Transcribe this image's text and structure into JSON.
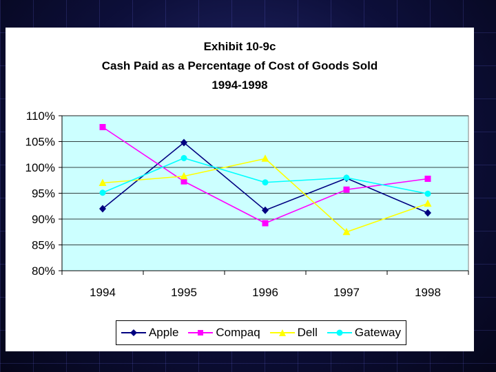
{
  "chart_data": {
    "type": "line",
    "title_lines": [
      "Exhibit 10-9c",
      "Cash Paid as a Percentage of Cost of Goods Sold",
      "1994-1998"
    ],
    "categories": [
      "1994",
      "1995",
      "1996",
      "1997",
      "1998"
    ],
    "y_ticks": [
      "110%",
      "105%",
      "100%",
      "95%",
      "90%",
      "85%",
      "80%"
    ],
    "ylim": [
      80,
      110
    ],
    "xlabel": "",
    "ylabel": "",
    "grid": "horizontal",
    "legend_position": "bottom",
    "plot_background": "#ccffff",
    "series": [
      {
        "name": "Apple",
        "color": "#000080",
        "marker": "diamond",
        "values": [
          92.0,
          104.8,
          91.7,
          97.9,
          91.2
        ]
      },
      {
        "name": "Compaq",
        "color": "#ff00ff",
        "marker": "square",
        "values": [
          107.8,
          97.3,
          89.2,
          95.7,
          97.8
        ]
      },
      {
        "name": "Dell",
        "color": "#ffff00",
        "marker": "triangle",
        "values": [
          97.0,
          98.3,
          101.7,
          87.5,
          93.0
        ]
      },
      {
        "name": "Gateway",
        "color": "#00ffff",
        "marker": "circle",
        "values": [
          95.1,
          101.8,
          97.1,
          98.0,
          94.9
        ]
      }
    ]
  }
}
